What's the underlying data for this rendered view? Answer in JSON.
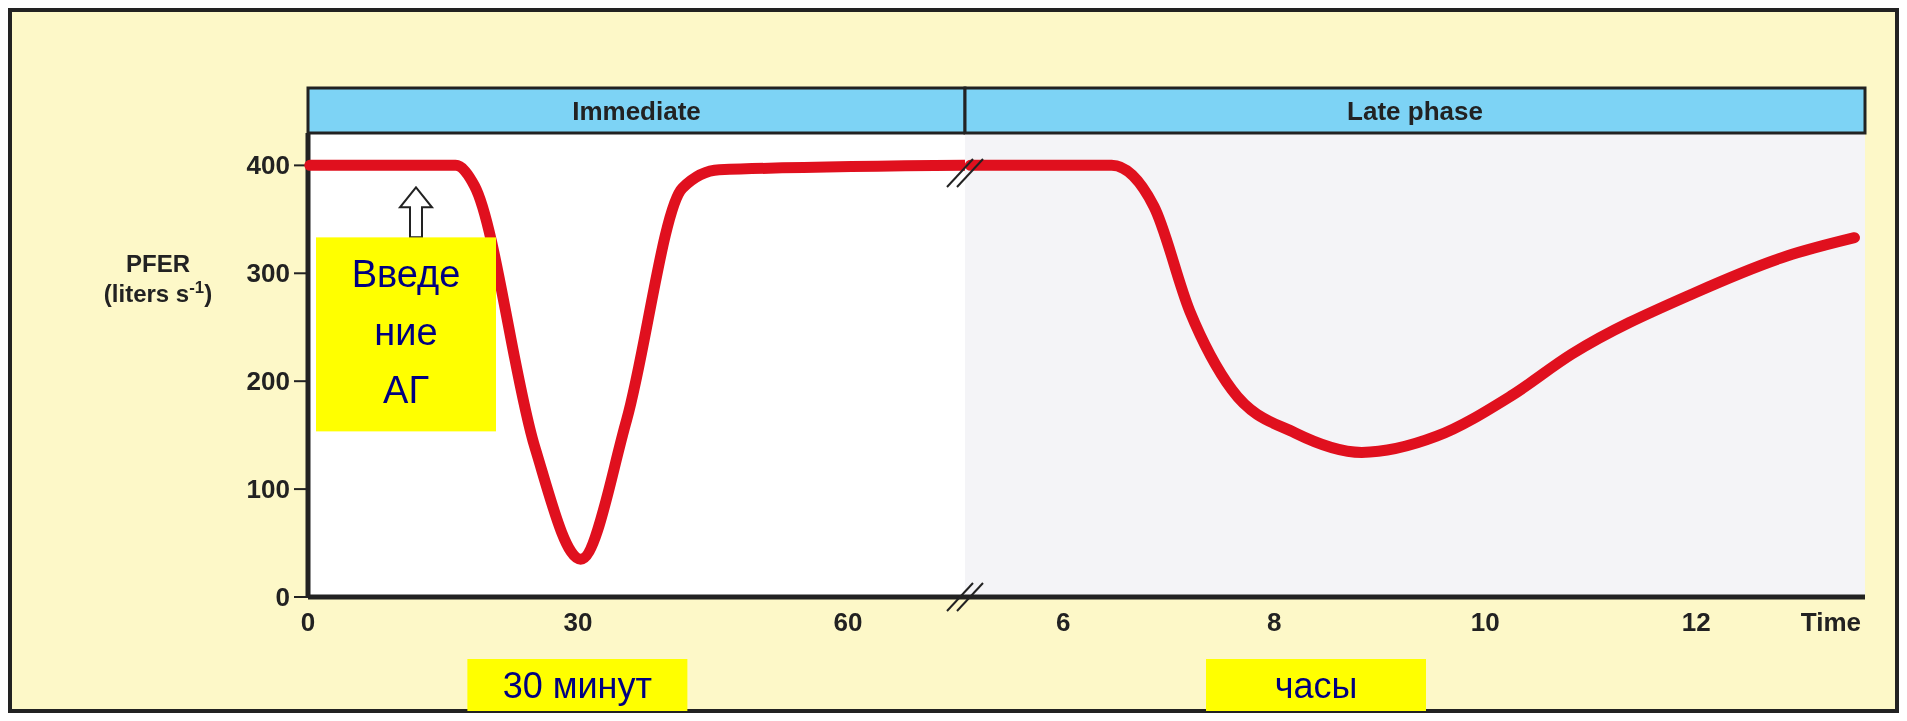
{
  "chart_data": [
    {
      "type": "line",
      "title": "Immediate",
      "ylabel": "PFER\n(liters s$^{-1}$)",
      "xlim": [
        0,
        73
      ],
      "xticks": [
        0,
        30,
        60
      ],
      "ylim": [
        0,
        430
      ],
      "yticks": [
        0,
        100,
        200,
        300,
        400
      ],
      "series": [
        {
          "color": "#e0101e",
          "x": [
            0.2,
            16.4,
            18.5,
            25.2,
            30.3,
            35.4,
            41.6,
            45.7,
            73
          ],
          "values": [
            400,
            400,
            381,
            139,
            35,
            164,
            379,
            396,
            400
          ]
        }
      ],
      "annotations": [
        {
          "text": "Введе\nние\nАГ",
          "x": 12,
          "y": 400
        },
        "30 минут"
      ]
    },
    {
      "type": "line",
      "title": "Late phase",
      "xlabel": "Time",
      "xlim": [
        5.07,
        13.6
      ],
      "xticks": [
        6,
        8,
        10,
        12
      ],
      "ylim": [
        0,
        430
      ],
      "tick_labels": "x",
      "series": [
        {
          "color": "#e0101e",
          "x": [
            5.12,
            6.46,
            6.86,
            7.2,
            7.6,
            8.2,
            8.83,
            9.54,
            10.24,
            10.82,
            11.99,
            12.86,
            13.5
          ],
          "values": [
            400,
            400,
            362,
            265,
            192,
            152,
            134,
            149,
            186,
            225,
            282,
            316,
            333
          ]
        }
      ],
      "annotations": [
        "часы"
      ]
    }
  ]
}
